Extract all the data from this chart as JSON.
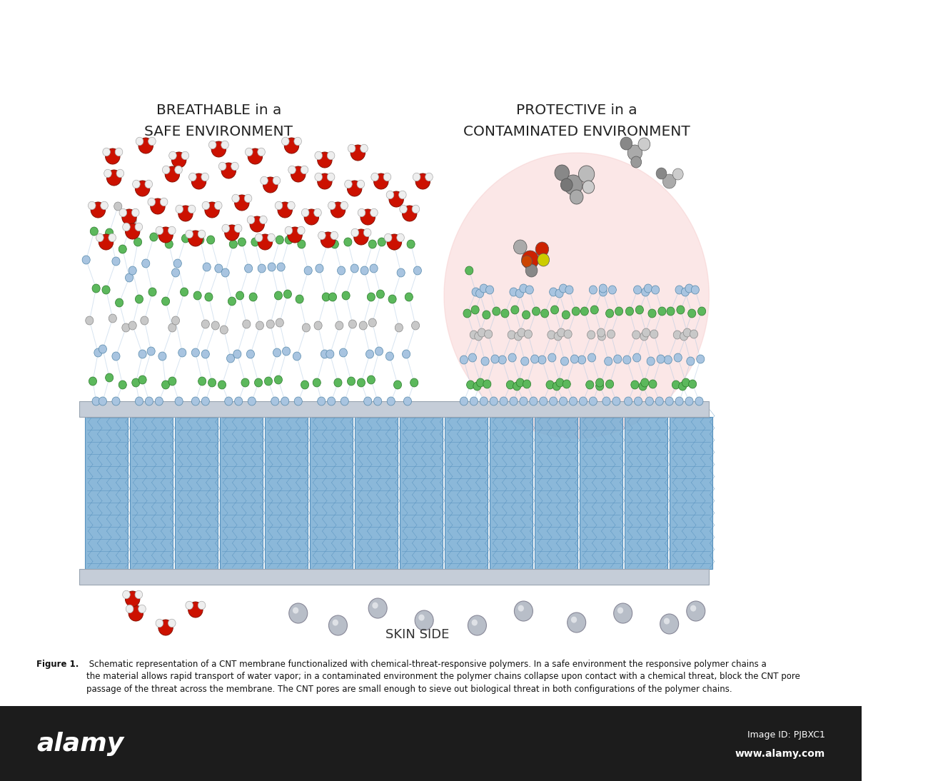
{
  "title_left_line1": "BREATHABLE in a",
  "title_left_line2": "SAFE ENVIRONMENT",
  "title_right_line1": "PROTECTIVE in a",
  "title_right_line2": "CONTAMINATED ENVIRONMENT",
  "skin_side_label": "SKIN SIDE",
  "figure_caption_bold": "Figure 1.",
  "figure_caption_rest": " Schematic representation of a CNT membrane functionalized with chemical-threat-responsive polymers. In a safe environment the responsive polymer chains a\nthe material allows rapid transport of water vapor; in a contaminated environment the polymer chains collapse upon contact with a chemical threat, block the CNT pore\npassage of the threat across the membrane. The CNT pores are small enough to sieve out biological threat in both configurations of the polymer chains.",
  "bg_color": "#ffffff",
  "cnt_color": "#7bafd4",
  "cnt_edge_color": "#4a88b8",
  "slab_color": "#c5cdd8",
  "slab_edge_color": "#9aa5b2",
  "polymer_blue_color": "#a8c4e0",
  "polymer_green_color": "#5cb85c",
  "polymer_gray_color": "#c8c8c8",
  "water_o_color": "#cc1100",
  "water_h_color": "#eeeeee",
  "alamy_bar_color": "#1c1c1c",
  "threat_pink_bg": "#f5c5c5",
  "gray_sphere_color": "#b8bec8",
  "gray_sphere_edge": "#888898"
}
